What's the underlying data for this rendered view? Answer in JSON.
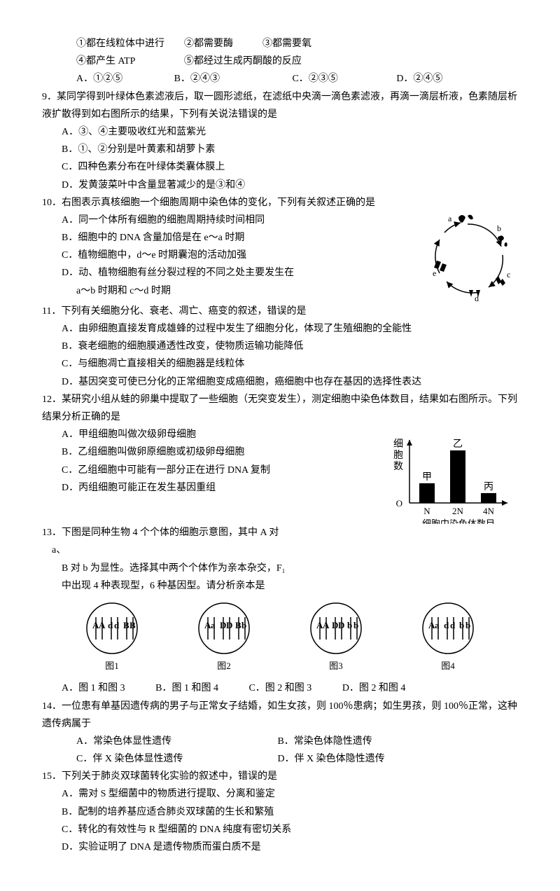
{
  "q8_sub": {
    "line1": "①都在线粒体中进行　　②都需要酶　　　③都需要氧",
    "line2": "④都产生 ATP　　　　　⑤都经过生成丙酮酸的反应",
    "optA": "A．①②⑤",
    "optB": "B．②④③",
    "optC": "C．②③⑤",
    "optD": "D．②④⑤"
  },
  "q9": {
    "stem": "9．某同学得到叶绿体色素滤液后，取一圆形滤纸，在滤纸中央滴一滴色素滤液，再滴一滴层析液，色素随层析液扩散得到如右图所示的结果，下列有关说法错误的是",
    "A": "A．③、④主要吸收红光和蓝紫光",
    "B": "B．①、②分别是叶黄素和胡萝卜素",
    "C": "C．四种色素分布在叶绿体类囊体膜上",
    "D": "D．发黄菠菜叶中含量显著减少的是③和④"
  },
  "q10": {
    "stem": "10．右图表示真核细胞一个细胞周期中染色体的变化，下列有关叙述正确的是",
    "A": "A．同一个体所有细胞的细胞周期持续时间相同",
    "B": "B．细胞中的 DNA 含量加倍是在 e～a 时期",
    "C": "C．植物细胞中，d～e 时期囊泡的活动加强",
    "D": "D．动、植物细胞有丝分裂过程的不同之处主要发生在",
    "D2": "a～b 时期和 c～d 时期"
  },
  "q11": {
    "stem": "11．下列有关细胞分化、衰老、凋亡、癌变的叙述，错误的是",
    "A": "A．由卵细胞直接发育成雄蜂的过程中发生了细胞分化，体现了生殖细胞的全能性",
    "B": "B．衰老细胞的细胞膜通透性改变，使物质运输功能降低",
    "C": "C．与细胞凋亡直接相关的细胞器是线粒体",
    "D": "D．基因突变可使已分化的正常细胞变成癌细胞，癌细胞中也存在基因的选择性表达"
  },
  "q12": {
    "stem": "12．某研究小组从蛙的卵巢中提取了一些细胞（无突变发生），测定细胞中染色体数目，结果如右图所示。下列结果分析正确的是",
    "A": "A．甲组细胞叫做次级卵母细胞",
    "B": "B．乙组细胞叫做卵原细胞或初级卵母细胞",
    "C": "C．乙组细胞中可能有一部分正在进行 DNA 复制",
    "D": "D．丙组细胞可能正在发生基因重组",
    "chart": {
      "ylabel": "细胞数",
      "xlabel": "细胞中染色体数目",
      "xticks": [
        "N",
        "2N",
        "4N"
      ],
      "barlabels": [
        "甲",
        "乙",
        "丙"
      ],
      "values": [
        30,
        80,
        15
      ],
      "bar_color": "#000000",
      "axis_color": "#000000",
      "bg": "#ffffff"
    }
  },
  "q13": {
    "stem1": "13．下图是同种生物 4 个个体的细胞示意图，其中 A 对",
    "stem1b": "a、",
    "stem2": "B 对 b 为显性。选择其中两个个体作为亲本杂交，F₁",
    "stem3": "中出现 4 种表现型，6 种基因型。请分析亲本是",
    "cells": [
      {
        "label": "图1",
        "alleles": [
          [
            "A",
            "A"
          ],
          [
            "d",
            "d"
          ],
          [
            "B",
            "B"
          ]
        ]
      },
      {
        "label": "图2",
        "alleles": [
          [
            "A",
            "a"
          ],
          [
            "D",
            "D"
          ],
          [
            "B",
            "b"
          ]
        ]
      },
      {
        "label": "图3",
        "alleles": [
          [
            "A",
            "A"
          ],
          [
            "D",
            "D"
          ],
          [
            "b",
            "b"
          ]
        ]
      },
      {
        "label": "图4",
        "alleles": [
          [
            "A",
            "a"
          ],
          [
            "d",
            "d"
          ],
          [
            "b",
            "b"
          ]
        ]
      }
    ],
    "optA": "A．图 1 和图 3",
    "optB": "B．图 1 和图 4",
    "optC": "C．图 2 和图 3",
    "optD": "D．图 2 和图 4"
  },
  "q14": {
    "stem": "14．一位患有单基因遗传病的男子与正常女子结婚，如生女孩，则 100％患病；如生男孩，则 100％正常，这种遗传病属于",
    "optA": "A．常染色体显性遗传",
    "optB": "B．常染色体隐性遗传",
    "optC": "C．伴 X 染色体显性遗传",
    "optD": "D．伴 X 染色体隐性遗传"
  },
  "q15": {
    "stem": "15．下列关于肺炎双球菌转化实验的叙述中，错误的是",
    "A": "A．需对 S 型细菌中的物质进行提取、分离和鉴定",
    "B": "B．配制的培养基应适合肺炎双球菌的生长和繁殖",
    "C": "C．转化的有效性与 R 型细菌的 DNA 纯度有密切关系",
    "D": "D．实验证明了 DNA 是遗传物质而蛋白质不是"
  }
}
